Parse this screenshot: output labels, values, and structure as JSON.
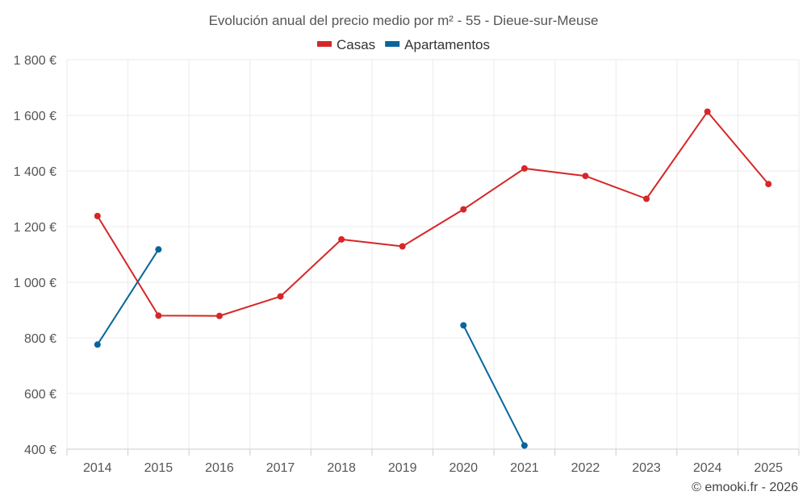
{
  "chart_data": {
    "type": "line",
    "title": "Evolución anual del precio medio por m² - 55 - Dieue-sur-Meuse",
    "xlabel": "",
    "ylabel": "",
    "categories": [
      "2014",
      "2015",
      "2016",
      "2017",
      "2018",
      "2019",
      "2020",
      "2021",
      "2022",
      "2023",
      "2024",
      "2025"
    ],
    "ylim": [
      400,
      1800
    ],
    "yticks": [
      400,
      600,
      800,
      1000,
      1200,
      1400,
      1600,
      1800
    ],
    "ytick_labels": [
      "400 €",
      "600 €",
      "800 €",
      "1 000 €",
      "1 200 €",
      "1 400 €",
      "1 600 €",
      "1 800 €"
    ],
    "grid": true,
    "legend_position": "top-center",
    "series": [
      {
        "name": "Casas",
        "color": "#d62728",
        "values": [
          1238,
          880,
          879,
          949,
          1154,
          1129,
          1262,
          1409,
          1382,
          1300,
          1613,
          1353
        ]
      },
      {
        "name": "Apartamentos",
        "color": "#07659b",
        "values": [
          776,
          1118,
          null,
          null,
          null,
          null,
          845,
          413,
          null,
          null,
          null,
          null
        ]
      }
    ]
  },
  "credit": "© emooki.fr - 2026"
}
